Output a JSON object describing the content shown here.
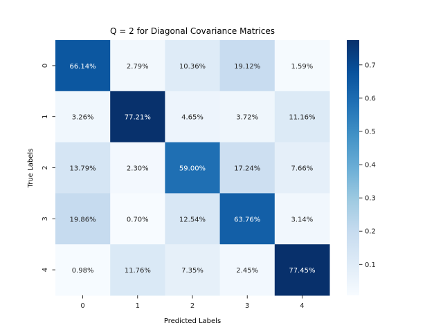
{
  "chart_data": {
    "type": "heatmap",
    "title": "Q = 2 for Diagonal Covariance Matrices",
    "xlabel": "Predicted Labels",
    "ylabel": "True Labels",
    "x_categories": [
      "0",
      "1",
      "2",
      "3",
      "4"
    ],
    "y_categories": [
      "0",
      "1",
      "2",
      "3",
      "4"
    ],
    "values": [
      [
        0.6614,
        0.0279,
        0.1036,
        0.1912,
        0.0159
      ],
      [
        0.0326,
        0.7721,
        0.0465,
        0.0372,
        0.1116
      ],
      [
        0.1379,
        0.023,
        0.59,
        0.1724,
        0.0766
      ],
      [
        0.1986,
        0.007,
        0.1254,
        0.6376,
        0.0314
      ],
      [
        0.0098,
        0.1176,
        0.0735,
        0.0245,
        0.7745
      ]
    ],
    "annotations": [
      [
        "66.14%",
        "2.79%",
        "10.36%",
        "19.12%",
        "1.59%"
      ],
      [
        "3.26%",
        "77.21%",
        "4.65%",
        "3.72%",
        "11.16%"
      ],
      [
        "13.79%",
        "2.30%",
        "59.00%",
        "17.24%",
        "7.66%"
      ],
      [
        "19.86%",
        "0.70%",
        "12.54%",
        "63.76%",
        "3.14%"
      ],
      [
        "0.98%",
        "11.76%",
        "7.35%",
        "2.45%",
        "77.45%"
      ]
    ],
    "colorbar": {
      "colormap": "Blues",
      "range": [
        0.007,
        0.7745
      ],
      "ticks": [
        "0.1",
        "0.2",
        "0.3",
        "0.4",
        "0.5",
        "0.6",
        "0.7"
      ]
    },
    "grid": false,
    "legend": "none"
  }
}
